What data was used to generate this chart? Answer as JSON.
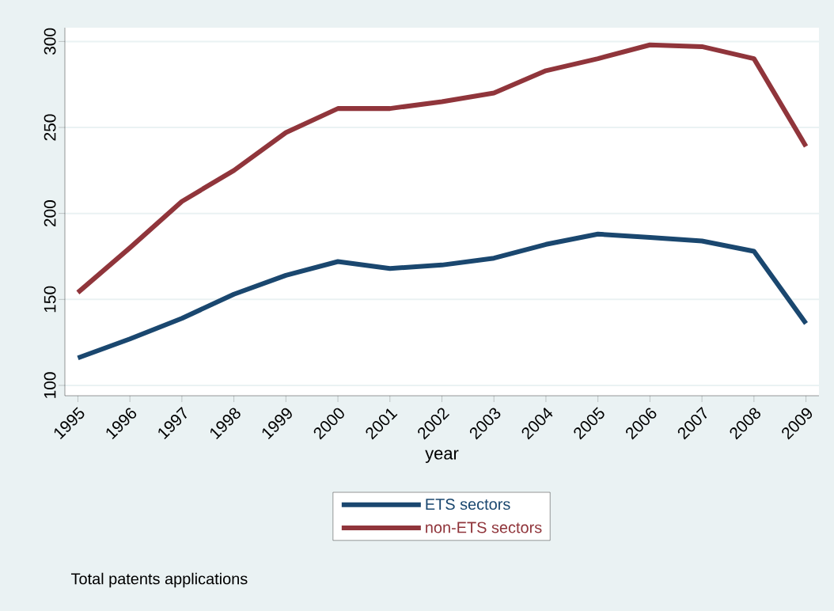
{
  "chart_data": {
    "type": "line",
    "xlabel": "year",
    "categories": [
      "1995",
      "1996",
      "1997",
      "1998",
      "1999",
      "2000",
      "2001",
      "2002",
      "2003",
      "2004",
      "2005",
      "2006",
      "2007",
      "2008",
      "2009"
    ],
    "series": [
      {
        "name": "ETS sectors",
        "color": "#1a476f",
        "values": [
          116,
          127,
          139,
          153,
          164,
          172,
          168,
          170,
          174,
          182,
          188,
          186,
          184,
          178,
          136
        ]
      },
      {
        "name": "non-ETS sectors",
        "color": "#90353b",
        "values": [
          154,
          180,
          207,
          225,
          247,
          261,
          261,
          265,
          270,
          283,
          290,
          298,
          297,
          290,
          239
        ]
      }
    ],
    "ylim": [
      94,
      308
    ],
    "yticks": [
      100,
      150,
      200,
      250,
      300
    ],
    "grid": "y",
    "legend": "bottom",
    "line_style": "solid",
    "annotations": [
      "Total patents applications"
    ]
  }
}
